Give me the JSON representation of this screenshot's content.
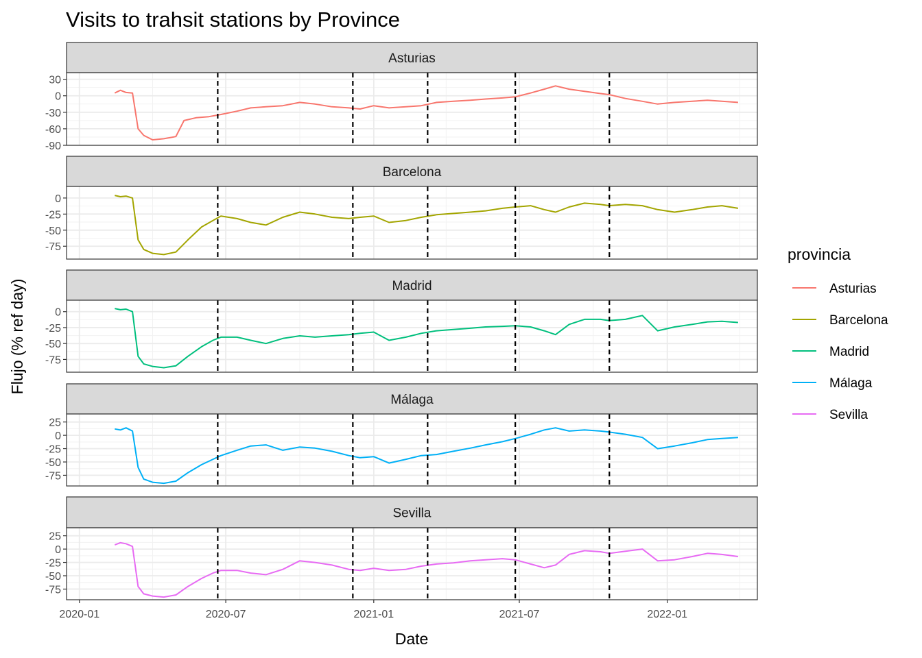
{
  "chart_data": {
    "type": "line",
    "title": "Visits to trahsit stations by Province",
    "xlabel": "Date",
    "ylabel": "Flujo (% ref day)",
    "x_ticks": [
      "2020-01",
      "2020-07",
      "2021-01",
      "2021-07",
      "2022-01"
    ],
    "xlim": [
      "2019-12-16",
      "2022-04-23"
    ],
    "vlines": [
      "2020-06-21",
      "2020-12-06",
      "2021-03-09",
      "2021-06-26",
      "2021-10-21"
    ],
    "legend": {
      "title": "provincia",
      "position": "right"
    },
    "grid": true,
    "panels": [
      {
        "name": "Asturias",
        "color": "#F8766D",
        "ylim": [
          -90,
          42
        ],
        "y_ticks": [
          30,
          0,
          -30,
          -60,
          -90
        ],
        "points": [
          [
            "2020-02-14",
            5
          ],
          [
            "2020-02-21",
            10
          ],
          [
            "2020-02-28",
            6
          ],
          [
            "2020-03-07",
            5
          ],
          [
            "2020-03-14",
            -60
          ],
          [
            "2020-03-21",
            -72
          ],
          [
            "2020-04-01",
            -80
          ],
          [
            "2020-04-15",
            -78
          ],
          [
            "2020-04-30",
            -74
          ],
          [
            "2020-05-10",
            -45
          ],
          [
            "2020-05-25",
            -40
          ],
          [
            "2020-06-10",
            -38
          ],
          [
            "2020-06-25",
            -34
          ],
          [
            "2020-07-15",
            -28
          ],
          [
            "2020-08-01",
            -22
          ],
          [
            "2020-08-20",
            -20
          ],
          [
            "2020-09-10",
            -18
          ],
          [
            "2020-10-01",
            -12
          ],
          [
            "2020-10-20",
            -15
          ],
          [
            "2020-11-10",
            -20
          ],
          [
            "2020-12-01",
            -22
          ],
          [
            "2020-12-15",
            -24
          ],
          [
            "2021-01-01",
            -18
          ],
          [
            "2021-01-20",
            -22
          ],
          [
            "2021-02-10",
            -20
          ],
          [
            "2021-03-01",
            -18
          ],
          [
            "2021-03-20",
            -12
          ],
          [
            "2021-04-10",
            -10
          ],
          [
            "2021-05-01",
            -8
          ],
          [
            "2021-05-20",
            -6
          ],
          [
            "2021-06-10",
            -4
          ],
          [
            "2021-06-26",
            -2
          ],
          [
            "2021-07-15",
            5
          ],
          [
            "2021-08-01",
            12
          ],
          [
            "2021-08-15",
            18
          ],
          [
            "2021-09-01",
            12
          ],
          [
            "2021-09-20",
            8
          ],
          [
            "2021-10-10",
            4
          ],
          [
            "2021-10-21",
            2
          ],
          [
            "2021-11-10",
            -5
          ],
          [
            "2021-12-01",
            -10
          ],
          [
            "2021-12-20",
            -15
          ],
          [
            "2022-01-10",
            -12
          ],
          [
            "2022-02-01",
            -10
          ],
          [
            "2022-02-20",
            -8
          ],
          [
            "2022-03-10",
            -10
          ],
          [
            "2022-03-30",
            -12
          ]
        ]
      },
      {
        "name": "Barcelona",
        "color": "#A3A500",
        "ylim": [
          -95,
          18
        ],
        "y_ticks": [
          0,
          -25,
          -50,
          -75
        ],
        "points": [
          [
            "2020-02-14",
            4
          ],
          [
            "2020-02-21",
            2
          ],
          [
            "2020-02-28",
            3
          ],
          [
            "2020-03-07",
            0
          ],
          [
            "2020-03-14",
            -65
          ],
          [
            "2020-03-21",
            -80
          ],
          [
            "2020-04-01",
            -86
          ],
          [
            "2020-04-15",
            -88
          ],
          [
            "2020-04-30",
            -84
          ],
          [
            "2020-05-15",
            -65
          ],
          [
            "2020-06-01",
            -45
          ],
          [
            "2020-06-15",
            -35
          ],
          [
            "2020-06-25",
            -28
          ],
          [
            "2020-07-15",
            -32
          ],
          [
            "2020-08-01",
            -38
          ],
          [
            "2020-08-20",
            -42
          ],
          [
            "2020-09-10",
            -30
          ],
          [
            "2020-10-01",
            -22
          ],
          [
            "2020-10-20",
            -25
          ],
          [
            "2020-11-10",
            -30
          ],
          [
            "2020-12-01",
            -32
          ],
          [
            "2020-12-15",
            -30
          ],
          [
            "2021-01-01",
            -28
          ],
          [
            "2021-01-20",
            -38
          ],
          [
            "2021-02-10",
            -35
          ],
          [
            "2021-03-01",
            -30
          ],
          [
            "2021-03-20",
            -26
          ],
          [
            "2021-04-10",
            -24
          ],
          [
            "2021-05-01",
            -22
          ],
          [
            "2021-05-20",
            -20
          ],
          [
            "2021-06-10",
            -16
          ],
          [
            "2021-06-26",
            -14
          ],
          [
            "2021-07-15",
            -12
          ],
          [
            "2021-08-01",
            -18
          ],
          [
            "2021-08-15",
            -22
          ],
          [
            "2021-09-01",
            -14
          ],
          [
            "2021-09-20",
            -8
          ],
          [
            "2021-10-10",
            -10
          ],
          [
            "2021-10-21",
            -12
          ],
          [
            "2021-11-10",
            -10
          ],
          [
            "2021-12-01",
            -12
          ],
          [
            "2021-12-20",
            -18
          ],
          [
            "2022-01-10",
            -22
          ],
          [
            "2022-02-01",
            -18
          ],
          [
            "2022-02-20",
            -14
          ],
          [
            "2022-03-10",
            -12
          ],
          [
            "2022-03-30",
            -16
          ]
        ]
      },
      {
        "name": "Madrid",
        "color": "#00BF7D",
        "ylim": [
          -95,
          18
        ],
        "y_ticks": [
          0,
          -25,
          -50,
          -75
        ],
        "points": [
          [
            "2020-02-14",
            5
          ],
          [
            "2020-02-21",
            3
          ],
          [
            "2020-02-28",
            4
          ],
          [
            "2020-03-07",
            0
          ],
          [
            "2020-03-14",
            -70
          ],
          [
            "2020-03-21",
            -82
          ],
          [
            "2020-04-01",
            -86
          ],
          [
            "2020-04-15",
            -88
          ],
          [
            "2020-04-30",
            -85
          ],
          [
            "2020-05-15",
            -70
          ],
          [
            "2020-06-01",
            -55
          ],
          [
            "2020-06-15",
            -45
          ],
          [
            "2020-06-25",
            -40
          ],
          [
            "2020-07-15",
            -40
          ],
          [
            "2020-08-01",
            -45
          ],
          [
            "2020-08-20",
            -50
          ],
          [
            "2020-09-10",
            -42
          ],
          [
            "2020-10-01",
            -38
          ],
          [
            "2020-10-20",
            -40
          ],
          [
            "2020-11-10",
            -38
          ],
          [
            "2020-12-01",
            -36
          ],
          [
            "2020-12-15",
            -34
          ],
          [
            "2021-01-01",
            -32
          ],
          [
            "2021-01-20",
            -45
          ],
          [
            "2021-02-10",
            -40
          ],
          [
            "2021-03-01",
            -34
          ],
          [
            "2021-03-20",
            -30
          ],
          [
            "2021-04-10",
            -28
          ],
          [
            "2021-05-01",
            -26
          ],
          [
            "2021-05-20",
            -24
          ],
          [
            "2021-06-10",
            -23
          ],
          [
            "2021-06-26",
            -22
          ],
          [
            "2021-07-15",
            -24
          ],
          [
            "2021-08-01",
            -30
          ],
          [
            "2021-08-15",
            -36
          ],
          [
            "2021-09-01",
            -20
          ],
          [
            "2021-09-20",
            -12
          ],
          [
            "2021-10-10",
            -12
          ],
          [
            "2021-10-21",
            -14
          ],
          [
            "2021-11-10",
            -12
          ],
          [
            "2021-12-01",
            -6
          ],
          [
            "2021-12-20",
            -30
          ],
          [
            "2022-01-10",
            -24
          ],
          [
            "2022-02-01",
            -20
          ],
          [
            "2022-02-20",
            -16
          ],
          [
            "2022-03-10",
            -15
          ],
          [
            "2022-03-30",
            -17
          ]
        ]
      },
      {
        "name": "Málaga",
        "color": "#00B0F6",
        "ylim": [
          -95,
          40
        ],
        "y_ticks": [
          25,
          0,
          -25,
          -50,
          -75
        ],
        "points": [
          [
            "2020-02-14",
            12
          ],
          [
            "2020-02-21",
            10
          ],
          [
            "2020-02-28",
            14
          ],
          [
            "2020-03-07",
            8
          ],
          [
            "2020-03-14",
            -60
          ],
          [
            "2020-03-21",
            -82
          ],
          [
            "2020-04-01",
            -88
          ],
          [
            "2020-04-15",
            -90
          ],
          [
            "2020-04-30",
            -86
          ],
          [
            "2020-05-15",
            -70
          ],
          [
            "2020-06-01",
            -55
          ],
          [
            "2020-06-15",
            -45
          ],
          [
            "2020-06-25",
            -38
          ],
          [
            "2020-07-15",
            -28
          ],
          [
            "2020-08-01",
            -20
          ],
          [
            "2020-08-20",
            -18
          ],
          [
            "2020-09-10",
            -28
          ],
          [
            "2020-10-01",
            -22
          ],
          [
            "2020-10-20",
            -24
          ],
          [
            "2020-11-10",
            -30
          ],
          [
            "2020-12-01",
            -38
          ],
          [
            "2020-12-15",
            -42
          ],
          [
            "2021-01-01",
            -40
          ],
          [
            "2021-01-20",
            -52
          ],
          [
            "2021-02-10",
            -45
          ],
          [
            "2021-03-01",
            -38
          ],
          [
            "2021-03-20",
            -36
          ],
          [
            "2021-04-10",
            -30
          ],
          [
            "2021-05-01",
            -24
          ],
          [
            "2021-05-20",
            -18
          ],
          [
            "2021-06-10",
            -12
          ],
          [
            "2021-06-26",
            -6
          ],
          [
            "2021-07-15",
            2
          ],
          [
            "2021-08-01",
            10
          ],
          [
            "2021-08-15",
            14
          ],
          [
            "2021-09-01",
            8
          ],
          [
            "2021-09-20",
            10
          ],
          [
            "2021-10-10",
            8
          ],
          [
            "2021-10-21",
            6
          ],
          [
            "2021-11-10",
            2
          ],
          [
            "2021-12-01",
            -4
          ],
          [
            "2021-12-20",
            -25
          ],
          [
            "2022-01-10",
            -20
          ],
          [
            "2022-02-01",
            -14
          ],
          [
            "2022-02-20",
            -8
          ],
          [
            "2022-03-10",
            -6
          ],
          [
            "2022-03-30",
            -4
          ]
        ]
      },
      {
        "name": "Sevilla",
        "color": "#E76BF3",
        "ylim": [
          -95,
          40
        ],
        "y_ticks": [
          25,
          0,
          -25,
          -50,
          -75
        ],
        "points": [
          [
            "2020-02-14",
            8
          ],
          [
            "2020-02-21",
            12
          ],
          [
            "2020-02-28",
            10
          ],
          [
            "2020-03-07",
            5
          ],
          [
            "2020-03-14",
            -70
          ],
          [
            "2020-03-21",
            -84
          ],
          [
            "2020-04-01",
            -88
          ],
          [
            "2020-04-15",
            -90
          ],
          [
            "2020-04-30",
            -86
          ],
          [
            "2020-05-15",
            -70
          ],
          [
            "2020-06-01",
            -55
          ],
          [
            "2020-06-15",
            -45
          ],
          [
            "2020-06-25",
            -40
          ],
          [
            "2020-07-15",
            -40
          ],
          [
            "2020-08-01",
            -45
          ],
          [
            "2020-08-20",
            -48
          ],
          [
            "2020-09-10",
            -38
          ],
          [
            "2020-10-01",
            -22
          ],
          [
            "2020-10-20",
            -25
          ],
          [
            "2020-11-10",
            -30
          ],
          [
            "2020-12-01",
            -38
          ],
          [
            "2020-12-15",
            -40
          ],
          [
            "2021-01-01",
            -36
          ],
          [
            "2021-01-20",
            -40
          ],
          [
            "2021-02-10",
            -38
          ],
          [
            "2021-03-01",
            -32
          ],
          [
            "2021-03-20",
            -28
          ],
          [
            "2021-04-10",
            -26
          ],
          [
            "2021-05-01",
            -22
          ],
          [
            "2021-05-20",
            -20
          ],
          [
            "2021-06-10",
            -18
          ],
          [
            "2021-06-26",
            -20
          ],
          [
            "2021-07-15",
            -28
          ],
          [
            "2021-08-01",
            -35
          ],
          [
            "2021-08-15",
            -30
          ],
          [
            "2021-09-01",
            -10
          ],
          [
            "2021-09-20",
            -3
          ],
          [
            "2021-10-10",
            -5
          ],
          [
            "2021-10-21",
            -8
          ],
          [
            "2021-11-10",
            -4
          ],
          [
            "2021-12-01",
            0
          ],
          [
            "2021-12-20",
            -22
          ],
          [
            "2022-01-10",
            -20
          ],
          [
            "2022-02-01",
            -14
          ],
          [
            "2022-02-20",
            -8
          ],
          [
            "2022-03-10",
            -10
          ],
          [
            "2022-03-30",
            -14
          ]
        ]
      }
    ]
  }
}
